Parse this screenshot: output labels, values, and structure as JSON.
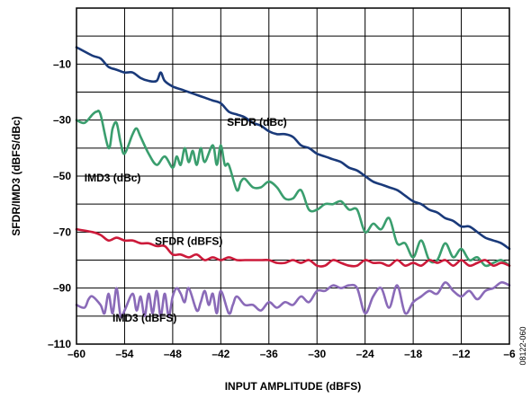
{
  "chart_data": {
    "type": "line",
    "title": "",
    "xlabel": "INPUT AMPLITUDE (dBFS)",
    "ylabel": "SFDR/IMD3 (dBFS/dBc)",
    "xlim": [
      -60,
      -6
    ],
    "ylim": [
      -110,
      10
    ],
    "xticks": [
      -60,
      -54,
      -48,
      -42,
      -36,
      -30,
      -24,
      -18,
      -12,
      -6
    ],
    "yticks": [
      -10,
      -30,
      -50,
      -70,
      -90,
      -110
    ],
    "grid": true,
    "figure_id": "08122-060",
    "series": [
      {
        "name": "SFDR (dBc)",
        "color": "#1a3a7a",
        "x": [
          -60,
          -58,
          -57,
          -56,
          -55,
          -54,
          -53,
          -52,
          -51,
          -50,
          -49.5,
          -49,
          -48,
          -47,
          -46,
          -45,
          -44,
          -43,
          -42,
          -41,
          -40,
          -39,
          -38,
          -37,
          -36,
          -35,
          -34,
          -33,
          -32,
          -31,
          -30,
          -29,
          -28,
          -27,
          -26,
          -25,
          -24,
          -23,
          -22,
          -21,
          -20,
          -19,
          -18,
          -17,
          -16,
          -15,
          -14,
          -13,
          -12,
          -11,
          -10,
          -9,
          -8,
          -7,
          -6
        ],
        "y": [
          -4,
          -7,
          -8,
          -11,
          -12,
          -13,
          -13,
          -15,
          -16,
          -16,
          -13,
          -16,
          -18,
          -19,
          -20,
          -21,
          -22,
          -23,
          -24,
          -27,
          -28,
          -29,
          -31,
          -32,
          -34,
          -35,
          -35,
          -36,
          -39,
          -40,
          -42,
          -43,
          -44,
          -45,
          -47,
          -48,
          -50,
          -52,
          -53,
          -54,
          -55,
          -57,
          -59,
          -60,
          -62,
          -63,
          -65,
          -66,
          -68,
          -68,
          -70,
          -72,
          -73,
          -74,
          -76
        ]
      },
      {
        "name": "IMD3 (dBc)",
        "color": "#3a9e6e",
        "x": [
          -60,
          -59,
          -58,
          -57.5,
          -57,
          -56,
          -55.5,
          -55,
          -54.5,
          -54,
          -53,
          -52.5,
          -52,
          -51,
          -50,
          -49,
          -48,
          -47.5,
          -47,
          -46.5,
          -46,
          -45.5,
          -45,
          -44.5,
          -44,
          -43,
          -42.5,
          -42,
          -41.5,
          -41,
          -40,
          -39.5,
          -39,
          -38,
          -37,
          -36,
          -35,
          -34,
          -33,
          -32,
          -31,
          -30,
          -29,
          -28,
          -27,
          -26,
          -25,
          -24,
          -23,
          -22,
          -21,
          -20,
          -19,
          -18,
          -17,
          -16,
          -15,
          -14,
          -13,
          -12,
          -11,
          -10,
          -9,
          -8,
          -7,
          -6
        ],
        "y": [
          -30,
          -31,
          -28,
          -27,
          -28,
          -40,
          -33,
          -31,
          -38,
          -42,
          -35,
          -33,
          -36,
          -42,
          -46,
          -43,
          -47,
          -43,
          -46,
          -40,
          -45,
          -41,
          -46,
          -40,
          -45,
          -39,
          -46,
          -39,
          -46,
          -46,
          -55,
          -52,
          -51,
          -54,
          -54,
          -52,
          -54,
          -58,
          -58,
          -55,
          -62,
          -62,
          -60,
          -60,
          -59,
          -62,
          -62,
          -70,
          -67,
          -69,
          -65,
          -74,
          -74,
          -79,
          -73,
          -80,
          -80,
          -74,
          -79,
          -76,
          -80,
          -79,
          -82,
          -81,
          -80,
          -82
        ]
      },
      {
        "name": "SFDR (dBFS)",
        "color": "#cc1a3a",
        "x": [
          -60,
          -58,
          -57,
          -56,
          -55,
          -54,
          -53,
          -52,
          -51,
          -50,
          -49,
          -48,
          -47,
          -46,
          -45,
          -44,
          -43,
          -42,
          -41,
          -40,
          -39,
          -38,
          -37,
          -36,
          -35,
          -34,
          -33,
          -32,
          -31,
          -30,
          -29,
          -28,
          -27,
          -26,
          -25,
          -24,
          -23,
          -22,
          -21,
          -20,
          -19,
          -18,
          -17,
          -16,
          -15,
          -14,
          -13,
          -12,
          -11,
          -10,
          -9,
          -8,
          -7,
          -6
        ],
        "y": [
          -69,
          -70,
          -71,
          -73,
          -72,
          -73,
          -73,
          -74,
          -74,
          -75,
          -75,
          -78,
          -78,
          -79,
          -78,
          -80,
          -79,
          -80,
          -79,
          -80,
          -80,
          -80,
          -80,
          -80,
          -81,
          -81,
          -80,
          -81,
          -80,
          -82,
          -82,
          -80,
          -81,
          -82,
          -82,
          -80,
          -81,
          -81,
          -82,
          -80,
          -82,
          -81,
          -82,
          -80,
          -81,
          -80,
          -82,
          -80,
          -82,
          -81,
          -80,
          -82,
          -81,
          -82
        ]
      },
      {
        "name": "IMD3 (dBFS)",
        "color": "#8a6ab8",
        "x": [
          -60,
          -59,
          -58.5,
          -58,
          -57,
          -56.5,
          -56,
          -55.5,
          -55,
          -54.5,
          -54,
          -53,
          -52.5,
          -52,
          -51.5,
          -51,
          -50.5,
          -50,
          -49.5,
          -49,
          -48.5,
          -48,
          -47.5,
          -47,
          -46.5,
          -46,
          -45,
          -44.5,
          -44,
          -43.5,
          -43,
          -42.5,
          -42,
          -41,
          -40.5,
          -40,
          -39,
          -38,
          -37,
          -36,
          -35,
          -34,
          -33,
          -32,
          -31,
          -30,
          -29,
          -28,
          -27,
          -26,
          -25,
          -24,
          -23,
          -22,
          -21,
          -20,
          -19,
          -18,
          -17,
          -16,
          -15,
          -14,
          -13,
          -12,
          -11,
          -10,
          -9,
          -8,
          -7,
          -6
        ],
        "y": [
          -96,
          -97,
          -94,
          -93,
          -96,
          -99,
          -92,
          -99,
          -90,
          -100,
          -98,
          -92,
          -98,
          -93,
          -100,
          -92,
          -99,
          -91,
          -100,
          -92,
          -100,
          -93,
          -90,
          -92,
          -95,
          -90,
          -98,
          -95,
          -91,
          -96,
          -92,
          -99,
          -91,
          -99,
          -96,
          -93,
          -96,
          -96,
          -98,
          -95,
          -97,
          -95,
          -96,
          -93,
          -95,
          -91,
          -91,
          -89,
          -90,
          -89,
          -90,
          -99,
          -93,
          -90,
          -97,
          -89,
          -99,
          -95,
          -93,
          -91,
          -92,
          -88,
          -91,
          -93,
          -91,
          -94,
          -91,
          -90,
          -88,
          -89
        ]
      }
    ],
    "series_labels": [
      {
        "text": "SFDR (dBc)",
        "x": -37.5,
        "y": -32
      },
      {
        "text": "IMD3 (dBc)",
        "x": -55.5,
        "y": -52
      },
      {
        "text": "SFDR (dBFS)",
        "x": -46,
        "y": -74.5
      },
      {
        "text": "IMD3 (dBFS)",
        "x": -51.5,
        "y": -102
      }
    ]
  }
}
